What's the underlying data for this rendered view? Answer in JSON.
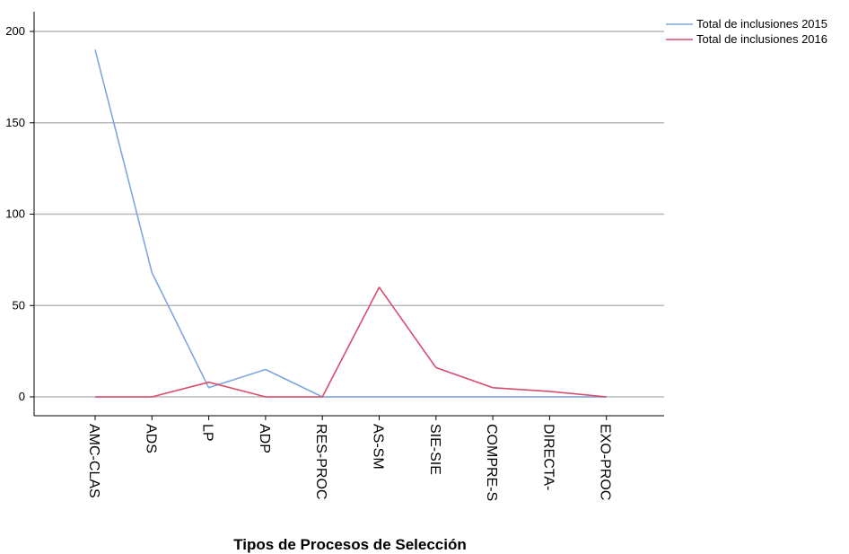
{
  "chart_data": {
    "type": "line",
    "title": "",
    "xlabel": "Tipos de Procesos de Selección",
    "ylabel": "",
    "categories": [
      "AMC-CLAS",
      "ADS",
      "LP",
      "ADP",
      "RES-PROC",
      "AS-SM",
      "SIE-SIE",
      "COMPRE-S",
      "DIRECTA-",
      "EXO-PROC"
    ],
    "series": [
      {
        "name": "Total de inclusiones 2015",
        "color": "#7ea6e0",
        "values": [
          190,
          68,
          5,
          15,
          0,
          0,
          0,
          0,
          0,
          0
        ]
      },
      {
        "name": "Total de inclusiones 2016",
        "color": "#d94c6e",
        "values": [
          0,
          0,
          8,
          0,
          0,
          60,
          16,
          5,
          3,
          0
        ]
      }
    ],
    "yticks": [
      0,
      50,
      100,
      150,
      200
    ],
    "ylim": [
      -10,
      210
    ],
    "grid": "horizontal",
    "legend_position": "top-right"
  }
}
